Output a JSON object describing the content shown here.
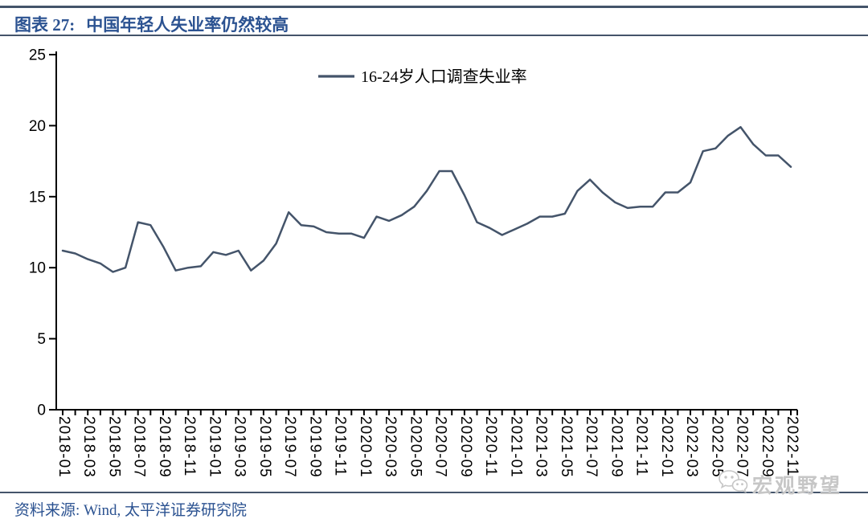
{
  "header": {
    "figure_label": "图表 27:",
    "title": "中国年轻人失业率仍然较高"
  },
  "legend": {
    "series_label": "16-24岁人口调查失业率"
  },
  "footer": {
    "source": "资料来源: Wind, 太平洋证券研究院"
  },
  "watermark": {
    "icon": "wechat-icon",
    "text": "宏观野望"
  },
  "colors": {
    "accent_blue": "#2B5291",
    "series_line": "#44546A",
    "axis_black": "#000000",
    "watermark_gray": "#C6C6C6"
  },
  "chart_data": {
    "type": "line",
    "title": "",
    "xlabel": "",
    "ylabel": "",
    "ylim": [
      0,
      25
    ],
    "yticks": [
      0,
      5,
      10,
      15,
      20,
      25
    ],
    "xtick_step": 2,
    "grid": false,
    "legend_position": "top-center",
    "categories": [
      "2018-01",
      "2018-02",
      "2018-03",
      "2018-04",
      "2018-05",
      "2018-06",
      "2018-07",
      "2018-08",
      "2018-09",
      "2018-10",
      "2018-11",
      "2018-12",
      "2019-01",
      "2019-02",
      "2019-03",
      "2019-04",
      "2019-05",
      "2019-06",
      "2019-07",
      "2019-08",
      "2019-09",
      "2019-10",
      "2019-11",
      "2019-12",
      "2020-01",
      "2020-02",
      "2020-03",
      "2020-04",
      "2020-05",
      "2020-06",
      "2020-07",
      "2020-08",
      "2020-09",
      "2020-10",
      "2020-11",
      "2020-12",
      "2021-01",
      "2021-02",
      "2021-03",
      "2021-04",
      "2021-05",
      "2021-06",
      "2021-07",
      "2021-08",
      "2021-09",
      "2021-10",
      "2021-11",
      "2021-12",
      "2022-01",
      "2022-02",
      "2022-03",
      "2022-04",
      "2022-05",
      "2022-06",
      "2022-07",
      "2022-08",
      "2022-09",
      "2022-10",
      "2022-11"
    ],
    "series": [
      {
        "name": "16-24岁人口调查失业率",
        "values": [
          11.2,
          11.0,
          10.6,
          10.3,
          9.7,
          10.0,
          13.2,
          13.0,
          11.5,
          9.8,
          10.0,
          10.1,
          11.1,
          10.9,
          11.2,
          9.8,
          10.5,
          11.7,
          13.9,
          13.0,
          12.9,
          12.5,
          12.4,
          12.4,
          12.1,
          13.6,
          13.3,
          13.7,
          14.3,
          15.4,
          16.8,
          16.8,
          15.1,
          13.2,
          12.8,
          12.3,
          12.7,
          13.1,
          13.6,
          13.6,
          13.8,
          15.4,
          16.2,
          15.3,
          14.6,
          14.2,
          14.3,
          14.3,
          15.3,
          15.3,
          16.0,
          18.2,
          18.4,
          19.3,
          19.9,
          18.7,
          17.9,
          17.9,
          17.1
        ]
      }
    ]
  }
}
